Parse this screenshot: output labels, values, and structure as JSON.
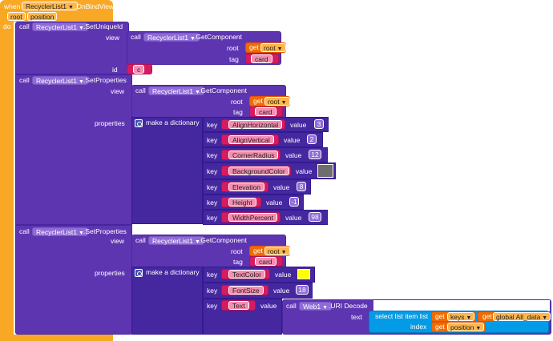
{
  "event": {
    "when": "when",
    "component": "RecyclerList1",
    "event_name": ".OnBindView",
    "params": [
      "root",
      "position"
    ],
    "do": "do"
  },
  "common": {
    "call": "call",
    "dropdown_arrow": "▼",
    "get": "get",
    "key": "key",
    "value": "value",
    "view": "view",
    "tag": "tag",
    "root": "root",
    "id": "id",
    "properties": "properties",
    "make_dict": "make a dictionary",
    "text": "text",
    "index": "index"
  },
  "block1": {
    "component": "RecyclerList1",
    "method": ".SetUniqueId",
    "getcomp_component": "RecyclerList1",
    "getcomp_method": ".GetComponent",
    "root_var": "root",
    "tag_value": "card",
    "id_value": "c"
  },
  "block2": {
    "component": "RecyclerList1",
    "method": ".SetProperties",
    "getcomp_component": "RecyclerList1",
    "getcomp_method": ".GetComponent",
    "root_var": "root",
    "tag_value": "card",
    "pairs": [
      {
        "key": "AlignHorizontal",
        "value": "3"
      },
      {
        "key": "AlignVertical",
        "value": "2"
      },
      {
        "key": "CornerRadius",
        "value": "12"
      },
      {
        "key": "BackgroundColor",
        "value": "",
        "color": "#6D6D6D"
      },
      {
        "key": "Elevation",
        "value": "8"
      },
      {
        "key": "Height",
        "value": "-1"
      },
      {
        "key": "WidthPercent",
        "value": "98"
      }
    ]
  },
  "block3": {
    "component": "RecyclerList1",
    "method": ".SetProperties",
    "getcomp_component": "RecyclerList1",
    "getcomp_method": ".GetComponent",
    "root_var": "root",
    "tag_value": "card",
    "pairs": [
      {
        "key": "TextColor",
        "value": "",
        "color": "#FFFF00"
      },
      {
        "key": "FontSize",
        "value": "18"
      },
      {
        "key": "Text",
        "value": ""
      }
    ],
    "uri_component": "Web1",
    "uri_method": ".URI Decode",
    "select_label": "select list item  list",
    "keys_var": "keys",
    "global_var": "global All_data",
    "position_var": "position"
  },
  "colors": {
    "event": "#F9A825",
    "component_block": "#5E35B1",
    "text_block": "#D81B60",
    "variable_block": "#EF6C00",
    "list_block": "#039BE5"
  }
}
